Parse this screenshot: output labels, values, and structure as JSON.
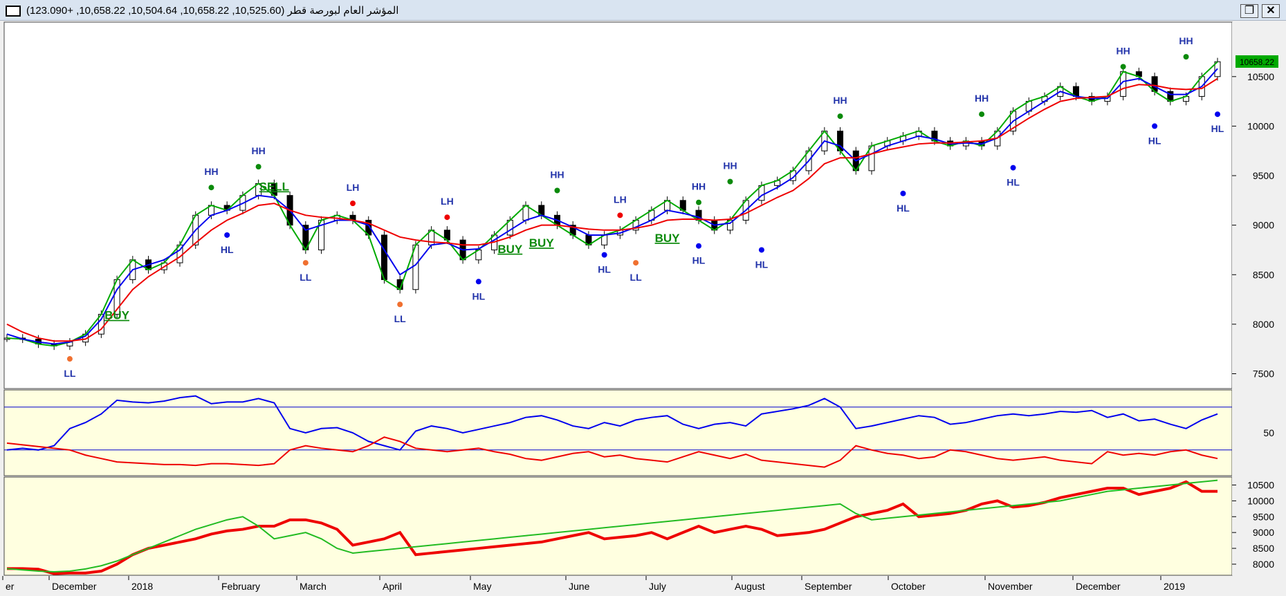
{
  "window": {
    "title": "المؤشر العام لبورصة قطر (10,525.60, 10,658.22, 10,504.64, 10,658.22, +123.090)",
    "restore_label": "❐",
    "close_label": "✕"
  },
  "colors": {
    "price_panel_bg": "#ffffff",
    "indicator_panel_bg": "#ffffe0",
    "ema_fast": "#00aa00",
    "ema_mid": "#0000ee",
    "ema_slow": "#ee0000",
    "peak_marker": "#0a8a0a",
    "higher_low_marker": "#0000ee",
    "lower_high_marker": "#ee0000",
    "lower_low_marker": "#f07030",
    "signal_text": "#0a8a0a",
    "last_price_badge": "#00aa00"
  },
  "chart_data": [
    {
      "type": "candlestick",
      "title": "المؤشر العام لبورصة قطر",
      "y_axis_ticks": [
        7500,
        8000,
        8500,
        9000,
        9500,
        10000,
        10500
      ],
      "ylim": [
        7350,
        11050
      ],
      "x_month_labels": [
        "er",
        "December",
        "2018",
        "February",
        "March",
        "April",
        "May",
        "June",
        "July",
        "August",
        "September",
        "October",
        "November",
        "December",
        "2019"
      ],
      "last_price_label": "10658.22",
      "series": [
        {
          "key": "fast",
          "values": [
            7860,
            7850,
            7800,
            7780,
            7820,
            7900,
            8100,
            8450,
            8650,
            8550,
            8620,
            8800,
            9100,
            9200,
            9150,
            9300,
            9420,
            9300,
            9000,
            8750,
            9050,
            9100,
            9050,
            8900,
            8450,
            8350,
            8800,
            8950,
            8850,
            8650,
            8750,
            8900,
            9050,
            9200,
            9100,
            9000,
            8900,
            8800,
            8900,
            8950,
            9050,
            9150,
            9250,
            9150,
            9050,
            8950,
            9050,
            9250,
            9400,
            9450,
            9550,
            9750,
            9950,
            9750,
            9550,
            9800,
            9850,
            9900,
            9950,
            9850,
            9800,
            9850,
            9800,
            9950,
            10150,
            10250,
            10300,
            10400,
            10300,
            10250,
            10300,
            10550,
            10500,
            10350,
            10250,
            10300,
            10500,
            10650
          ]
        },
        {
          "key": "mid",
          "values": [
            7900,
            7850,
            7820,
            7800,
            7820,
            7880,
            8050,
            8350,
            8550,
            8600,
            8650,
            8750,
            8950,
            9100,
            9150,
            9220,
            9300,
            9280,
            9150,
            8950,
            9000,
            9050,
            9050,
            9000,
            8750,
            8500,
            8600,
            8800,
            8820,
            8750,
            8760,
            8850,
            8950,
            9050,
            9100,
            9050,
            8980,
            8900,
            8900,
            8920,
            8980,
            9050,
            9150,
            9120,
            9080,
            9000,
            9020,
            9150,
            9300,
            9380,
            9480,
            9650,
            9850,
            9800,
            9650,
            9720,
            9800,
            9850,
            9900,
            9870,
            9820,
            9830,
            9820,
            9880,
            10050,
            10150,
            10250,
            10350,
            10300,
            10280,
            10280,
            10450,
            10480,
            10400,
            10320,
            10320,
            10400,
            10580
          ]
        },
        {
          "key": "slow",
          "values": [
            8000,
            7920,
            7860,
            7830,
            7830,
            7850,
            7950,
            8150,
            8350,
            8480,
            8580,
            8680,
            8820,
            8950,
            9050,
            9120,
            9200,
            9220,
            9150,
            9100,
            9080,
            9070,
            9050,
            9020,
            8950,
            8880,
            8850,
            8830,
            8820,
            8800,
            8800,
            8830,
            8880,
            8950,
            9000,
            9000,
            8980,
            8960,
            8950,
            8950,
            8970,
            9000,
            9050,
            9060,
            9060,
            9050,
            9060,
            9120,
            9200,
            9280,
            9350,
            9470,
            9620,
            9680,
            9680,
            9720,
            9760,
            9790,
            9820,
            9830,
            9830,
            9840,
            9850,
            9880,
            9980,
            10080,
            10170,
            10250,
            10280,
            10290,
            10300,
            10380,
            10420,
            10410,
            10380,
            10370,
            10380,
            10480
          ]
        }
      ],
      "annotations": [
        {
          "text": "LL",
          "kind": "lower_low",
          "i": 4,
          "v": 7650
        },
        {
          "text": "BUY",
          "kind": "signal",
          "i": 7,
          "v": 8050
        },
        {
          "text": "HH",
          "kind": "peak",
          "i": 13,
          "v": 9380
        },
        {
          "text": "HL",
          "kind": "higher_low",
          "i": 14,
          "v": 8900
        },
        {
          "text": "HH",
          "kind": "peak",
          "i": 16,
          "v": 9590
        },
        {
          "text": "SELL",
          "kind": "signal",
          "i": 17,
          "v": 9350
        },
        {
          "text": "LL",
          "kind": "lower_low",
          "i": 19,
          "v": 8620
        },
        {
          "text": "LH",
          "kind": "lower_high",
          "i": 22,
          "v": 9220
        },
        {
          "text": "LL",
          "kind": "lower_low",
          "i": 25,
          "v": 8200
        },
        {
          "text": "LH",
          "kind": "lower_high",
          "i": 28,
          "v": 9080
        },
        {
          "text": "HL",
          "kind": "higher_low",
          "i": 30,
          "v": 8430
        },
        {
          "text": "BUY",
          "kind": "signal",
          "i": 32,
          "v": 8720
        },
        {
          "text": "BUY",
          "kind": "signal",
          "i": 34,
          "v": 8780
        },
        {
          "text": "HH",
          "kind": "peak",
          "i": 35,
          "v": 9350
        },
        {
          "text": "HL",
          "kind": "higher_low",
          "i": 38,
          "v": 8700
        },
        {
          "text": "LH",
          "kind": "lower_high",
          "i": 39,
          "v": 9100
        },
        {
          "text": "LL",
          "kind": "lower_low",
          "i": 40,
          "v": 8620
        },
        {
          "text": "BUY",
          "kind": "signal",
          "i": 42,
          "v": 8830
        },
        {
          "text": "HH",
          "kind": "peak",
          "i": 44,
          "v": 9230
        },
        {
          "text": "HL",
          "kind": "higher_low",
          "i": 44,
          "v": 8790
        },
        {
          "text": "HH",
          "kind": "peak",
          "i": 46,
          "v": 9440
        },
        {
          "text": "HL",
          "kind": "higher_low",
          "i": 48,
          "v": 8750
        },
        {
          "text": "HH",
          "kind": "peak",
          "i": 53,
          "v": 10100
        },
        {
          "text": "HL",
          "kind": "higher_low",
          "i": 57,
          "v": 9320
        },
        {
          "text": "HH",
          "kind": "peak",
          "i": 62,
          "v": 10120
        },
        {
          "text": "HL",
          "kind": "higher_low",
          "i": 64,
          "v": 9580
        },
        {
          "text": "HH",
          "kind": "peak",
          "i": 71,
          "v": 10600
        },
        {
          "text": "HL",
          "kind": "higher_low",
          "i": 73,
          "v": 10000
        },
        {
          "text": "HH",
          "kind": "peak",
          "i": 75,
          "v": 10700
        },
        {
          "text": "HL",
          "kind": "higher_low",
          "i": 77,
          "v": 10120
        }
      ]
    },
    {
      "type": "line",
      "y_axis_ticks": [
        50
      ],
      "ylim": [
        0,
        100
      ],
      "reference_lines": [
        80,
        30
      ],
      "series": [
        {
          "key": "blue",
          "color": "#0000ee",
          "values": [
            30,
            32,
            30,
            35,
            55,
            62,
            72,
            88,
            86,
            85,
            87,
            91,
            93,
            84,
            86,
            86,
            90,
            85,
            55,
            50,
            55,
            56,
            50,
            40,
            35,
            30,
            52,
            58,
            55,
            50,
            54,
            58,
            62,
            68,
            70,
            65,
            58,
            55,
            62,
            58,
            65,
            68,
            70,
            60,
            55,
            60,
            62,
            58,
            72,
            75,
            78,
            82,
            90,
            80,
            55,
            58,
            62,
            66,
            70,
            68,
            60,
            62,
            66,
            70,
            72,
            70,
            72,
            75,
            74,
            76,
            68,
            72,
            64,
            66,
            60,
            55,
            65,
            72
          ]
        },
        {
          "key": "red",
          "color": "#ee0000",
          "values": [
            38,
            36,
            34,
            32,
            30,
            24,
            20,
            16,
            15,
            14,
            13,
            13,
            12,
            14,
            14,
            13,
            12,
            14,
            30,
            35,
            32,
            30,
            28,
            35,
            45,
            40,
            32,
            30,
            28,
            30,
            32,
            28,
            25,
            20,
            18,
            22,
            26,
            28,
            22,
            24,
            20,
            18,
            16,
            22,
            28,
            24,
            20,
            25,
            18,
            16,
            14,
            12,
            10,
            18,
            35,
            30,
            26,
            24,
            20,
            22,
            30,
            28,
            24,
            20,
            18,
            20,
            22,
            18,
            16,
            14,
            28,
            24,
            26,
            24,
            28,
            30,
            24,
            20
          ]
        }
      ]
    },
    {
      "type": "line",
      "y_axis_ticks": [
        8000,
        8500,
        9000,
        9500,
        10000,
        10500
      ],
      "ylim": [
        7650,
        10750
      ],
      "series": [
        {
          "key": "red-step",
          "color": "#ee0000",
          "values": [
            7860,
            7860,
            7840,
            7700,
            7720,
            7720,
            7780,
            8000,
            8300,
            8500,
            8600,
            8700,
            8800,
            8950,
            9050,
            9100,
            9200,
            9200,
            9400,
            9400,
            9300,
            9100,
            8600,
            8700,
            8800,
            9000,
            8300,
            8350,
            8400,
            8450,
            8500,
            8550,
            8600,
            8650,
            8700,
            8800,
            8900,
            9000,
            8800,
            8850,
            8900,
            9000,
            8800,
            9000,
            9200,
            9000,
            9100,
            9200,
            9100,
            8900,
            8950,
            9000,
            9100,
            9300,
            9500,
            9600,
            9700,
            9900,
            9500,
            9550,
            9600,
            9700,
            9900,
            10000,
            9800,
            9850,
            9950,
            10100,
            10200,
            10300,
            10400,
            10400,
            10200,
            10300,
            10400,
            10600,
            10300,
            10300
          ]
        },
        {
          "key": "green-trend",
          "color": "#22bb22",
          "values": [
            7860,
            7820,
            7780,
            7760,
            7780,
            7850,
            7950,
            8100,
            8300,
            8500,
            8700,
            8900,
            9100,
            9250,
            9400,
            9500,
            9200,
            8800,
            8900,
            9000,
            8800,
            8500,
            8350,
            8400,
            8450,
            8500,
            8550,
            8600,
            8650,
            8700,
            8750,
            8800,
            8850,
            8900,
            8950,
            9000,
            9050,
            9100,
            9150,
            9200,
            9250,
            9300,
            9350,
            9400,
            9450,
            9500,
            9550,
            9600,
            9650,
            9700,
            9750,
            9800,
            9850,
            9900,
            9600,
            9400,
            9450,
            9500,
            9550,
            9600,
            9650,
            9700,
            9750,
            9800,
            9850,
            9900,
            9950,
            10000,
            10100,
            10200,
            10300,
            10350,
            10400,
            10450,
            10500,
            10550,
            10600,
            10650
          ]
        }
      ]
    }
  ]
}
